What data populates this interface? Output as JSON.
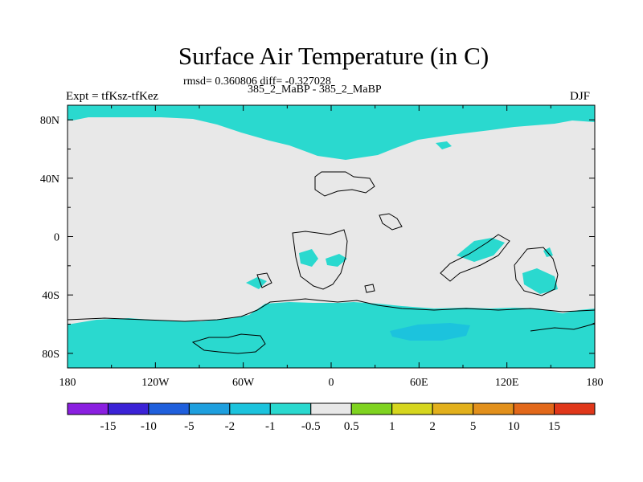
{
  "chart_data": {
    "type": "heatmap",
    "title": "Surface Air Temperature (in C)",
    "stats_text": "rmsd= 0.360806 diff= -0.327028",
    "runs_text": "385_2_MaBP - 385_2_MaBP",
    "left_label": "Expt = tfKsz-tfKez",
    "right_label": "DJF",
    "x_ticks": [
      "180",
      "120W",
      "60W",
      "0",
      "60E",
      "120E",
      "180"
    ],
    "x_tick_lon": [
      -180,
      -120,
      -60,
      0,
      60,
      120,
      180
    ],
    "y_ticks": [
      "80N",
      "40N",
      "0",
      "40S",
      "80S"
    ],
    "y_tick_lat": [
      80,
      40,
      0,
      -40,
      -80
    ],
    "xlim": [
      -180,
      180
    ],
    "ylim": [
      -90,
      90
    ],
    "colorbar": {
      "labels": [
        "-15",
        "-10",
        "-5",
        "-2",
        "-1",
        "-0.5",
        "0.5",
        "1",
        "2",
        "5",
        "10",
        "15"
      ],
      "colors": [
        "#8a1fe0",
        "#3b22d6",
        "#1f5fdc",
        "#1e9fde",
        "#1cc3dd",
        "#2ad9cf",
        "#e8e8e8",
        "#7fd320",
        "#d6d61e",
        "#e2b01c",
        "#e2901b",
        "#e2681a",
        "#e0371a"
      ]
    },
    "fill_colors": {
      "neutral": "#e8e8e8",
      "light_cooling": "#2ad9cf",
      "moderate_cooling": "#1cc3dd"
    },
    "regions": [
      {
        "name": "arctic_cooling",
        "bin": "-1 to -0.5",
        "lon": [
          -180,
          180
        ],
        "lat": [
          60,
          90
        ]
      },
      {
        "name": "southern_ocean_cooling",
        "bin": "-1 to -0.5",
        "lon": [
          -180,
          180
        ],
        "lat": [
          -90,
          -48
        ]
      },
      {
        "name": "southern_ocean_core",
        "bin": "-2 to -1",
        "lon": [
          40,
          90
        ],
        "lat": [
          -68,
          -60
        ]
      }
    ]
  }
}
